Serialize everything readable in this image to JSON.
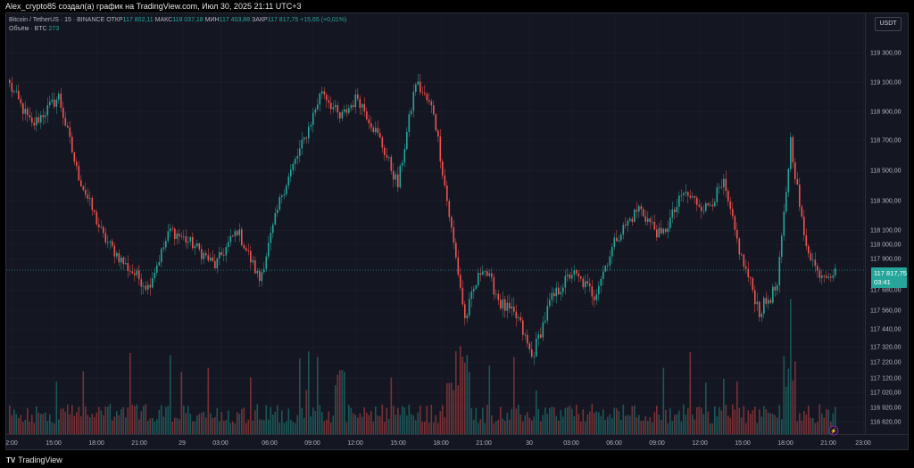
{
  "header": {
    "caption": "Alex_crypto85 создал(а) график на TradingView.com, Июл 30, 2025 21:11 UTC+3"
  },
  "legend": {
    "symbol": "Bitcoin / TetherUS · 15 · BINANCE",
    "open_label": "ОТКР",
    "open_value": "117 802,11",
    "high_label": "МАКС",
    "high_value": "118 037,18",
    "low_label": "МИН",
    "low_value": "117 403,88",
    "close_label": "ЗАКР",
    "close_value": "117 817,75",
    "change": "+15,65 (+0,01%)",
    "volume_label": "Объём · BTC",
    "volume_value": "273"
  },
  "currency_button": "USDT",
  "last_price": {
    "value": "117 817,75",
    "countdown": "03:41"
  },
  "footer": {
    "logo": "TradingView"
  },
  "colors": {
    "up": "#26a69a",
    "down": "#ef5350",
    "background": "#141722",
    "grid": "#1e222d"
  },
  "chart_data": {
    "type": "candlestick",
    "y_ticks": [
      "119 300,00",
      "119 100,00",
      "118 900,00",
      "118 700,00",
      "118 500,00",
      "118 300,00",
      "118 100,00",
      "118 000,00",
      "117 900,00",
      "117 680,00",
      "117 560,00",
      "117 440,00",
      "117 320,00",
      "117 220,00",
      "117 120,00",
      "117 020,00",
      "116 920,00",
      "116 820,00"
    ],
    "y_tick_values": [
      119300,
      119100,
      118900,
      118700,
      118500,
      118300,
      118100,
      118000,
      117900,
      117680,
      117560,
      117440,
      117320,
      117220,
      117120,
      117020,
      116920,
      116820
    ],
    "x_ticks": [
      "2:00",
      "15:00",
      "18:00",
      "21:00",
      "29",
      "03:00",
      "06:00",
      "09:00",
      "12:00",
      "15:00",
      "18:00",
      "21:00",
      "30",
      "03:00",
      "06:00",
      "09:00",
      "12:00",
      "15:00",
      "18:00",
      "21:00",
      "23:00"
    ],
    "last_price": 117817.75,
    "anchors": [
      {
        "i": 0,
        "p": 119080
      },
      {
        "i": 10,
        "p": 118800
      },
      {
        "i": 22,
        "p": 119000
      },
      {
        "i": 30,
        "p": 118500
      },
      {
        "i": 42,
        "p": 118050
      },
      {
        "i": 52,
        "p": 117850
      },
      {
        "i": 62,
        "p": 117700
      },
      {
        "i": 72,
        "p": 118100
      },
      {
        "i": 82,
        "p": 118000
      },
      {
        "i": 92,
        "p": 117850
      },
      {
        "i": 102,
        "p": 118100
      },
      {
        "i": 112,
        "p": 117750
      },
      {
        "i": 122,
        "p": 118350
      },
      {
        "i": 132,
        "p": 118700
      },
      {
        "i": 140,
        "p": 119050
      },
      {
        "i": 148,
        "p": 118850
      },
      {
        "i": 156,
        "p": 119000
      },
      {
        "i": 166,
        "p": 118700
      },
      {
        "i": 174,
        "p": 118400
      },
      {
        "i": 182,
        "p": 119100
      },
      {
        "i": 190,
        "p": 118900
      },
      {
        "i": 198,
        "p": 118100
      },
      {
        "i": 204,
        "p": 117500
      },
      {
        "i": 212,
        "p": 117850
      },
      {
        "i": 220,
        "p": 117600
      },
      {
        "i": 228,
        "p": 117500
      },
      {
        "i": 234,
        "p": 117250
      },
      {
        "i": 242,
        "p": 117600
      },
      {
        "i": 252,
        "p": 117800
      },
      {
        "i": 262,
        "p": 117650
      },
      {
        "i": 272,
        "p": 118050
      },
      {
        "i": 282,
        "p": 118250
      },
      {
        "i": 292,
        "p": 118050
      },
      {
        "i": 302,
        "p": 118350
      },
      {
        "i": 312,
        "p": 118250
      },
      {
        "i": 320,
        "p": 118400
      },
      {
        "i": 328,
        "p": 117900
      },
      {
        "i": 336,
        "p": 117550
      },
      {
        "i": 344,
        "p": 117700
      },
      {
        "i": 350,
        "p": 118700
      },
      {
        "i": 356,
        "p": 118050
      },
      {
        "i": 362,
        "p": 117800
      },
      {
        "i": 370,
        "p": 117800
      }
    ],
    "candle_count": 371
  }
}
